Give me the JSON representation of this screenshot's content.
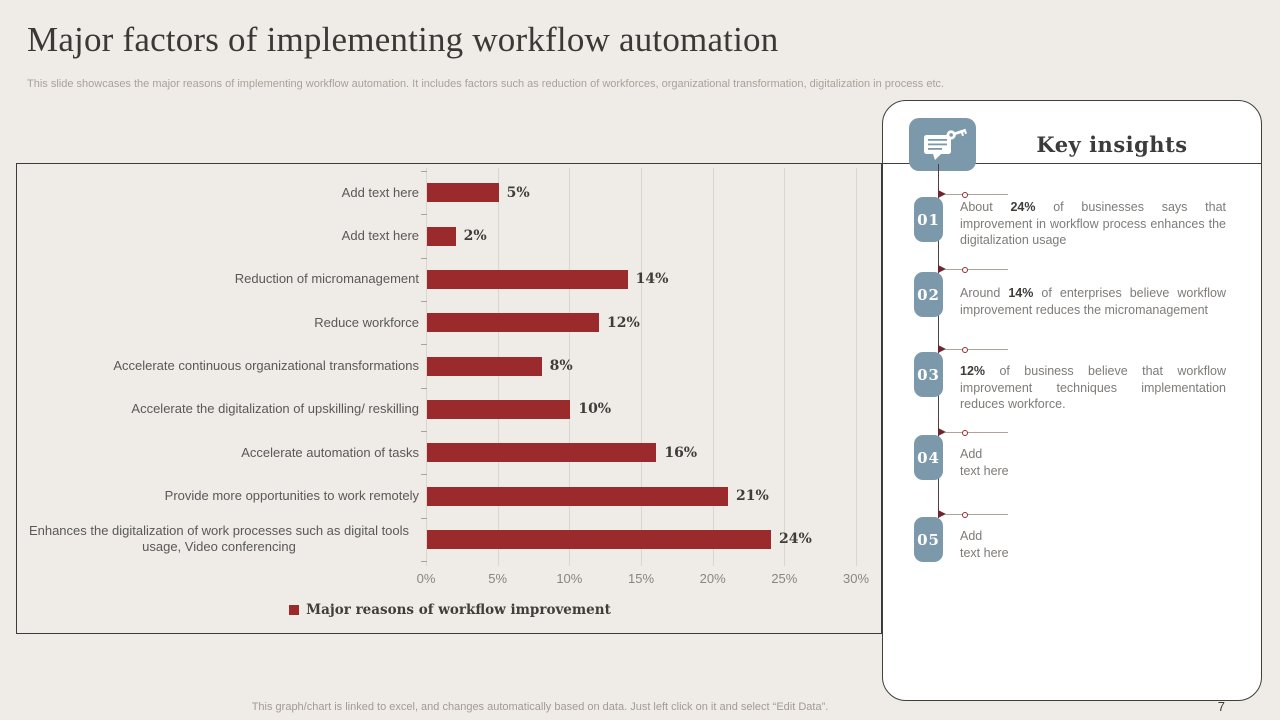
{
  "slide": {
    "title": "Major factors of implementing workflow automation",
    "subtitle": "This slide showcases the major reasons of implementing workflow automation. It includes factors such as reduction of workforces, organizational transformation, digitalization in process etc.",
    "footer_note": "This graph/chart is linked to excel, and changes automatically based on data. Just left click on it and select “Edit Data”.",
    "page_number": "7"
  },
  "chart_data": {
    "type": "bar",
    "orientation": "horizontal",
    "categories": [
      "Add text here",
      "Add text here",
      "Reduction of micromanagement",
      "Reduce workforce",
      "Accelerate continuous organizational transformations",
      "Accelerate the digitalization of upskilling/ reskilling",
      "Accelerate automation of tasks",
      "Provide more opportunities to work remotely",
      "Enhances the digitalization of work processes such as digital tools usage, Video conferencing"
    ],
    "values": [
      5,
      2,
      14,
      12,
      8,
      10,
      16,
      21,
      24
    ],
    "value_labels": [
      "5%",
      "2%",
      "14%",
      "12%",
      "8%",
      "10%",
      "16%",
      "21%",
      "24%"
    ],
    "x_ticks": [
      "0%",
      "5%",
      "10%",
      "15%",
      "20%",
      "25%",
      "30%"
    ],
    "xlim": [
      0,
      30
    ],
    "grid": "vertical",
    "legend": {
      "label": "Major reasons of workflow improvement",
      "position": "bottom"
    },
    "bar_color": "#9A2A2C",
    "title": "",
    "xlabel": "",
    "ylabel": ""
  },
  "insights": {
    "title": "Key insights",
    "icon": "key-message-icon",
    "items": [
      {
        "number": "01",
        "segments": [
          {
            "text": "About ",
            "bold": false
          },
          {
            "text": "24%",
            "bold": true
          },
          {
            "text": " of businesses says that improvement in workflow process enhances the digitalization usage",
            "bold": false
          }
        ]
      },
      {
        "number": "02",
        "segments": [
          {
            "text": "Around ",
            "bold": false
          },
          {
            "text": "14%",
            "bold": true
          },
          {
            "text": " of enterprises believe workflow improvement reduces the micromanagement",
            "bold": false
          }
        ]
      },
      {
        "number": "03",
        "segments": [
          {
            "text": "12%",
            "bold": true
          },
          {
            "text": " of business believe that workflow improvement techniques implementation reduces workforce.",
            "bold": false
          }
        ]
      },
      {
        "number": "04",
        "segments": [
          {
            "text": "Add\ntext here",
            "bold": false
          }
        ]
      },
      {
        "number": "05",
        "segments": [
          {
            "text": "Add\ntext here",
            "bold": false
          }
        ]
      }
    ]
  },
  "colors": {
    "background": "#EFEBE6",
    "bar": "#9A2A2C",
    "badge": "#7C99AC",
    "frame_border": "#3C3C3C",
    "gridline": "#DAD5CF",
    "title_text": "#3B3935",
    "muted_text": "#A9A29B",
    "insight_text": "#7E7B78"
  }
}
